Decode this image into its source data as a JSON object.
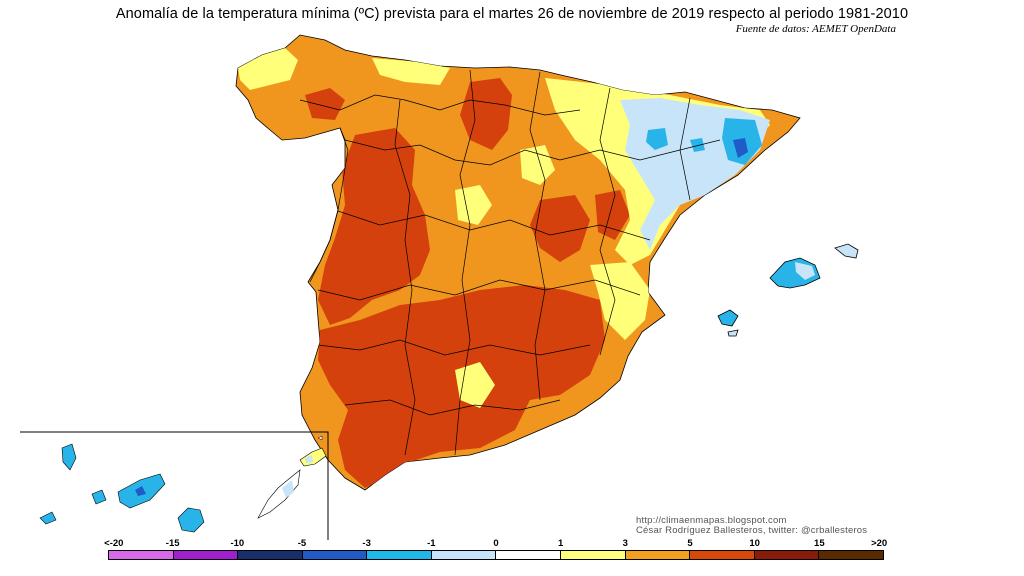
{
  "title": "Anomalía de la temperatura mínima (ºC) prevista para el martes 26 de noviembre de 2019 respecto al periodo 1981-2010",
  "source": "Fuente de datos: AEMET OpenData",
  "credits": {
    "url": "http://climaenmapas.blogspot.com",
    "author": "César Rodríguez Ballesteros, twitter: @crballesteros"
  },
  "legend": {
    "ticks": [
      "<-20",
      "-15",
      "-10",
      "-5",
      "-3",
      "-1",
      "0",
      "1",
      "3",
      "5",
      "10",
      "15",
      ">20"
    ],
    "colors": [
      "#d86ae8",
      "#a020d0",
      "#1a2e6b",
      "#1f5cc8",
      "#20b8e8",
      "#c8e4f8",
      "#ffffff",
      "#ffff80",
      "#f2a020",
      "#d84a0a",
      "#8a1a0a",
      "#5a2a00"
    ]
  },
  "map": {
    "region": "Península Ibérica, Baleares y Canarias",
    "palette": {
      "strong_warm": "#d4410c",
      "warm": "#f0961e",
      "mild_warm": "#ffff7a",
      "neutral": "#ffffff",
      "mild_cold": "#c8e4f8",
      "cold": "#28b4e8",
      "colder": "#1f5cc8"
    }
  }
}
